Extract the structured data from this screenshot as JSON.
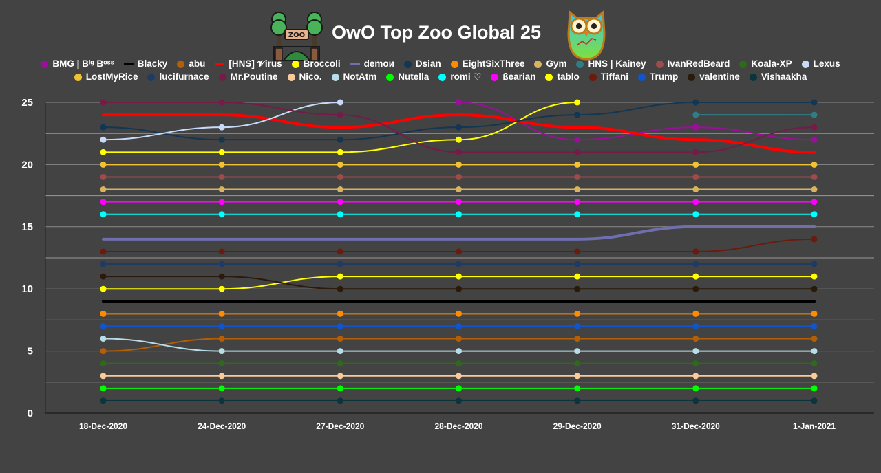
{
  "chart_data": {
    "type": "line",
    "title": "OwO Top Zoo Global 25",
    "xlabel": "",
    "ylabel": "",
    "ylim": [
      0,
      25
    ],
    "yticks": [
      0,
      5,
      10,
      15,
      20,
      25
    ],
    "categories": [
      "18-Dec-2020",
      "24-Dec-2020",
      "27-Dec-2020",
      "28-Dec-2020",
      "29-Dec-2020",
      "31-Dec-2020",
      "1-Jan-2021"
    ],
    "legend_position": "top",
    "series": [
      {
        "name": "BMG | Bᴵᵍ Bᵒˢˢ",
        "color": "#9c0f9c",
        "marker": "circle",
        "values": [
          null,
          null,
          null,
          25,
          22,
          23,
          22
        ]
      },
      {
        "name": "Blacky",
        "color": "#000000",
        "marker": "line",
        "values": [
          9,
          9,
          9,
          9,
          9,
          9,
          9
        ]
      },
      {
        "name": "abu",
        "color": "#b45f06",
        "marker": "circle",
        "values": [
          5,
          6,
          6,
          6,
          6,
          6,
          6
        ]
      },
      {
        "name": "[HNS] 𝓥irus",
        "color": "#ff0000",
        "marker": "line",
        "values": [
          24,
          24,
          23,
          24,
          23,
          22,
          21
        ]
      },
      {
        "name": "Broccoli",
        "color": "#ffff00",
        "marker": "circle",
        "values": [
          21,
          21,
          21,
          22,
          25,
          null,
          null
        ]
      },
      {
        "name": "demoи",
        "color": "#6f6fb0",
        "marker": "line",
        "values": [
          14,
          14,
          14,
          14,
          14,
          15,
          15
        ]
      },
      {
        "name": "Dsian",
        "color": "#133652",
        "marker": "circle",
        "values": [
          23,
          22,
          22,
          23,
          24,
          25,
          25
        ]
      },
      {
        "name": "EightSixThree",
        "color": "#ff8c00",
        "marker": "circle",
        "values": [
          8,
          8,
          8,
          8,
          8,
          8,
          8
        ]
      },
      {
        "name": "Gym",
        "color": "#d8b45e",
        "marker": "circle",
        "values": [
          18,
          18,
          18,
          18,
          18,
          18,
          18
        ]
      },
      {
        "name": "HNS | Kainey",
        "color": "#2f7d86",
        "marker": "circle",
        "values": [
          null,
          null,
          null,
          null,
          null,
          24,
          24
        ]
      },
      {
        "name": "IvanRedBeard",
        "color": "#a04b4b",
        "marker": "circle",
        "values": [
          19,
          19,
          19,
          19,
          19,
          19,
          19
        ]
      },
      {
        "name": "Koala-XP",
        "color": "#2d6a1a",
        "marker": "circle",
        "values": [
          4,
          4,
          4,
          4,
          4,
          4,
          4
        ]
      },
      {
        "name": "Lexus",
        "color": "#c9daf8",
        "marker": "circle",
        "values": [
          22,
          23,
          25,
          null,
          null,
          null,
          null
        ]
      },
      {
        "name": "LostMyRice",
        "color": "#f1c232",
        "marker": "circle",
        "values": [
          20,
          20,
          20,
          20,
          20,
          20,
          20
        ]
      },
      {
        "name": "lucifurnace",
        "color": "#1f3b63",
        "marker": "circle",
        "values": [
          12,
          12,
          12,
          12,
          12,
          12,
          12
        ]
      },
      {
        "name": "Mr.Poutine",
        "color": "#741b47",
        "marker": "circle",
        "values": [
          25,
          25,
          24,
          21,
          21,
          21,
          23
        ]
      },
      {
        "name": "Nico.",
        "color": "#f9cb9c",
        "marker": "circle",
        "values": [
          3,
          3,
          3,
          3,
          3,
          3,
          3
        ]
      },
      {
        "name": "NotAtm",
        "color": "#b7dde8",
        "marker": "circle",
        "values": [
          6,
          5,
          5,
          5,
          5,
          5,
          5
        ]
      },
      {
        "name": "Nutella",
        "color": "#00ff00",
        "marker": "circle",
        "values": [
          2,
          2,
          2,
          2,
          2,
          2,
          2
        ]
      },
      {
        "name": "romi ♡",
        "color": "#00ffff",
        "marker": "circle",
        "values": [
          16,
          16,
          16,
          16,
          16,
          16,
          16
        ]
      },
      {
        "name": "ßearian",
        "color": "#ff00ff",
        "marker": "circle",
        "values": [
          17,
          17,
          17,
          17,
          17,
          17,
          17
        ]
      },
      {
        "name": "tablo",
        "color": "#ffff00",
        "marker": "circle",
        "values": [
          10,
          10,
          11,
          11,
          11,
          11,
          11
        ]
      },
      {
        "name": "Tiffani",
        "color": "#6b1a0c",
        "marker": "circle",
        "values": [
          13,
          13,
          13,
          13,
          13,
          13,
          14
        ]
      },
      {
        "name": "Trump",
        "color": "#1155cc",
        "marker": "circle",
        "values": [
          7,
          7,
          7,
          7,
          7,
          7,
          7
        ]
      },
      {
        "name": "valentine",
        "color": "#2b1a0a",
        "marker": "circle",
        "values": [
          11,
          11,
          10,
          10,
          10,
          10,
          10
        ]
      },
      {
        "name": "Vishaakha",
        "color": "#0c343d",
        "marker": "circle",
        "values": [
          1,
          1,
          1,
          1,
          1,
          1,
          1
        ]
      }
    ]
  },
  "icons": {
    "left": "zoo-sign-icon",
    "right": "owl-icon"
  }
}
